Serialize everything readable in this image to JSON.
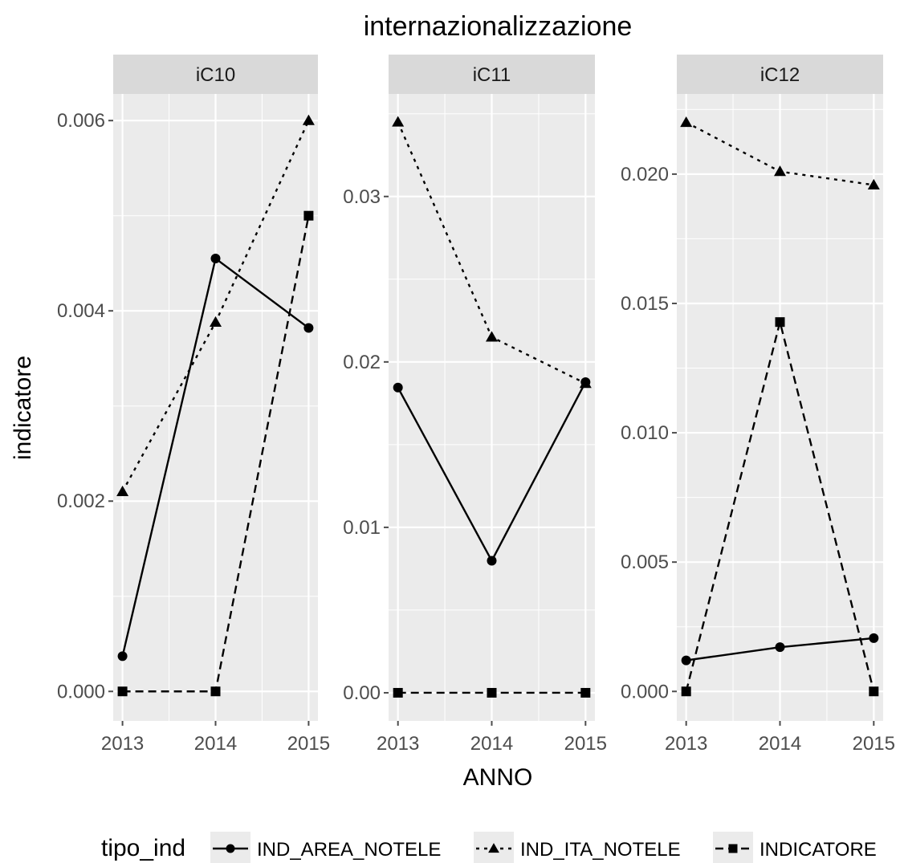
{
  "chart_data": {
    "type": "line",
    "title": "internazionalizzazione",
    "xlabel": "ANNO",
    "ylabel": "indicatore",
    "x": [
      2013,
      2014,
      2015
    ],
    "legend": {
      "title": "tipo_ind",
      "placement": "bottom",
      "entries": [
        "IND_AREA_NOTELE",
        "IND_ITA_NOTELE",
        "INDICATORE"
      ]
    },
    "series_styles": {
      "IND_AREA_NOTELE": {
        "marker": "circle",
        "dash": "solid"
      },
      "IND_ITA_NOTELE": {
        "marker": "triangle",
        "dash": "dotted"
      },
      "INDICATORE": {
        "marker": "square",
        "dash": "dashed"
      }
    },
    "colors": {
      "panel": "#ebebeb",
      "strip": "#d9d9d9",
      "grid": "#ffffff",
      "line": "#000000",
      "tick": "#4d4d4d"
    },
    "grid": true,
    "facets": [
      {
        "name": "iC10",
        "ylim": [
          -0.00031,
          0.00628
        ],
        "yticks": [
          0.0,
          0.002,
          0.004,
          0.006
        ],
        "ytick_labels": [
          "0.000",
          "0.002",
          "0.004",
          "0.006"
        ],
        "xtick_labels": [
          "2013",
          "2014",
          "2015"
        ],
        "series": [
          {
            "name": "IND_AREA_NOTELE",
            "values": [
              0.00037,
              0.00455,
              0.00382
            ]
          },
          {
            "name": "IND_ITA_NOTELE",
            "values": [
              0.0021,
              0.00388,
              0.006
            ]
          },
          {
            "name": "INDICATORE",
            "values": [
              0.0,
              0.0,
              0.005
            ]
          }
        ]
      },
      {
        "name": "iC11",
        "ylim": [
          -0.0017,
          0.0362
        ],
        "yticks": [
          0.0,
          0.01,
          0.02,
          0.03
        ],
        "ytick_labels": [
          "0.00",
          "0.01",
          "0.02",
          "0.03"
        ],
        "xtick_labels": [
          "2013",
          "2014",
          "2015"
        ],
        "series": [
          {
            "name": "IND_AREA_NOTELE",
            "values": [
              0.01845,
              0.00798,
              0.01878
            ]
          },
          {
            "name": "IND_ITA_NOTELE",
            "values": [
              0.0345,
              0.0215,
              0.0187
            ]
          },
          {
            "name": "INDICATORE",
            "values": [
              0.0,
              0.0,
              0.0
            ]
          }
        ]
      },
      {
        "name": "iC12",
        "ylim": [
          -0.00114,
          0.0231
        ],
        "yticks": [
          0.0,
          0.005,
          0.01,
          0.015,
          0.02
        ],
        "ytick_labels": [
          "0.000",
          "0.005",
          "0.010",
          "0.015",
          "0.020"
        ],
        "xtick_labels": [
          "2013",
          "2014",
          "2015"
        ],
        "series": [
          {
            "name": "IND_AREA_NOTELE",
            "values": [
              0.0012,
              0.00171,
              0.00206
            ]
          },
          {
            "name": "IND_ITA_NOTELE",
            "values": [
              0.022,
              0.0201,
              0.01958
            ]
          },
          {
            "name": "INDICATORE",
            "values": [
              0.0,
              0.01428,
              0.0
            ]
          }
        ]
      }
    ]
  }
}
